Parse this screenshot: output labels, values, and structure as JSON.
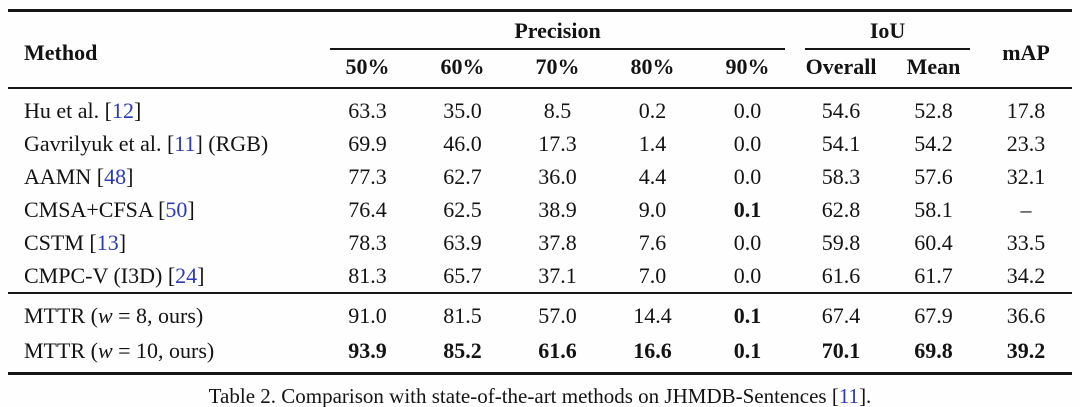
{
  "colors": {
    "citation_blue": "#2c3ab5",
    "text": "#131313",
    "rule": "#161616"
  },
  "table": {
    "header": {
      "method": "Method",
      "groups": [
        {
          "label": "Precision",
          "span": 5
        },
        {
          "label": "IoU",
          "span": 2
        }
      ],
      "subheaders": [
        "50%",
        "60%",
        "70%",
        "80%",
        "90%",
        "Overall",
        "Mean"
      ],
      "map": "mAP"
    },
    "sections": [
      {
        "rows": [
          {
            "method": [
              {
                "text": "Hu et al. [",
                "style": "plain"
              },
              {
                "text": "12",
                "style": "cite"
              },
              {
                "text": "]",
                "style": "plain"
              }
            ],
            "values": [
              {
                "v": "63.3",
                "b": false
              },
              {
                "v": "35.0",
                "b": false
              },
              {
                "v": "8.5",
                "b": false
              },
              {
                "v": "0.2",
                "b": false
              },
              {
                "v": "0.0",
                "b": false
              },
              {
                "v": "54.6",
                "b": false
              },
              {
                "v": "52.8",
                "b": false
              },
              {
                "v": "17.8",
                "b": false
              }
            ]
          },
          {
            "method": [
              {
                "text": "Gavrilyuk et al. [",
                "style": "plain"
              },
              {
                "text": "11",
                "style": "cite"
              },
              {
                "text": "] (RGB)",
                "style": "plain"
              }
            ],
            "values": [
              {
                "v": "69.9",
                "b": false
              },
              {
                "v": "46.0",
                "b": false
              },
              {
                "v": "17.3",
                "b": false
              },
              {
                "v": "1.4",
                "b": false
              },
              {
                "v": "0.0",
                "b": false
              },
              {
                "v": "54.1",
                "b": false
              },
              {
                "v": "54.2",
                "b": false
              },
              {
                "v": "23.3",
                "b": false
              }
            ]
          },
          {
            "method": [
              {
                "text": "AAMN [",
                "style": "plain"
              },
              {
                "text": "48",
                "style": "cite"
              },
              {
                "text": "]",
                "style": "plain"
              }
            ],
            "values": [
              {
                "v": "77.3",
                "b": false
              },
              {
                "v": "62.7",
                "b": false
              },
              {
                "v": "36.0",
                "b": false
              },
              {
                "v": "4.4",
                "b": false
              },
              {
                "v": "0.0",
                "b": false
              },
              {
                "v": "58.3",
                "b": false
              },
              {
                "v": "57.6",
                "b": false
              },
              {
                "v": "32.1",
                "b": false
              }
            ]
          },
          {
            "method": [
              {
                "text": "CMSA+CFSA [",
                "style": "plain"
              },
              {
                "text": "50",
                "style": "cite"
              },
              {
                "text": "]",
                "style": "plain"
              }
            ],
            "values": [
              {
                "v": "76.4",
                "b": false
              },
              {
                "v": "62.5",
                "b": false
              },
              {
                "v": "38.9",
                "b": false
              },
              {
                "v": "9.0",
                "b": false
              },
              {
                "v": "0.1",
                "b": true
              },
              {
                "v": "62.8",
                "b": false
              },
              {
                "v": "58.1",
                "b": false
              },
              {
                "v": "–",
                "b": false
              }
            ]
          },
          {
            "method": [
              {
                "text": "CSTM [",
                "style": "plain"
              },
              {
                "text": "13",
                "style": "cite"
              },
              {
                "text": "]",
                "style": "plain"
              }
            ],
            "values": [
              {
                "v": "78.3",
                "b": false
              },
              {
                "v": "63.9",
                "b": false
              },
              {
                "v": "37.8",
                "b": false
              },
              {
                "v": "7.6",
                "b": false
              },
              {
                "v": "0.0",
                "b": false
              },
              {
                "v": "59.8",
                "b": false
              },
              {
                "v": "60.4",
                "b": false
              },
              {
                "v": "33.5",
                "b": false
              }
            ]
          },
          {
            "method": [
              {
                "text": "CMPC-V (I3D) [",
                "style": "plain"
              },
              {
                "text": "24",
                "style": "cite"
              },
              {
                "text": "]",
                "style": "plain"
              }
            ],
            "values": [
              {
                "v": "81.3",
                "b": false
              },
              {
                "v": "65.7",
                "b": false
              },
              {
                "v": "37.1",
                "b": false
              },
              {
                "v": "7.0",
                "b": false
              },
              {
                "v": "0.0",
                "b": false
              },
              {
                "v": "61.6",
                "b": false
              },
              {
                "v": "61.7",
                "b": false
              },
              {
                "v": "34.2",
                "b": false
              }
            ]
          }
        ]
      },
      {
        "rows": [
          {
            "method": [
              {
                "text": "MTTR (",
                "style": "plain"
              },
              {
                "text": "w",
                "style": "italic"
              },
              {
                "text": " = 8, ours)",
                "style": "plain"
              }
            ],
            "values": [
              {
                "v": "91.0",
                "b": false
              },
              {
                "v": "81.5",
                "b": false
              },
              {
                "v": "57.0",
                "b": false
              },
              {
                "v": "14.4",
                "b": false
              },
              {
                "v": "0.1",
                "b": true
              },
              {
                "v": "67.4",
                "b": false
              },
              {
                "v": "67.9",
                "b": false
              },
              {
                "v": "36.6",
                "b": false
              }
            ]
          },
          {
            "method": [
              {
                "text": "MTTR (",
                "style": "plain"
              },
              {
                "text": "w",
                "style": "italic"
              },
              {
                "text": " = 10, ours)",
                "style": "plain"
              }
            ],
            "values": [
              {
                "v": "93.9",
                "b": true
              },
              {
                "v": "85.2",
                "b": true
              },
              {
                "v": "61.6",
                "b": true
              },
              {
                "v": "16.6",
                "b": true
              },
              {
                "v": "0.1",
                "b": true
              },
              {
                "v": "70.1",
                "b": true
              },
              {
                "v": "69.8",
                "b": true
              },
              {
                "v": "39.2",
                "b": true
              }
            ]
          }
        ]
      }
    ]
  },
  "caption": {
    "segments": [
      {
        "text": "Table 2. Comparison with state-of-the-art methods on JHMDB-Sentences [",
        "style": "plain"
      },
      {
        "text": "11",
        "style": "cite"
      },
      {
        "text": "].",
        "style": "plain"
      }
    ]
  }
}
